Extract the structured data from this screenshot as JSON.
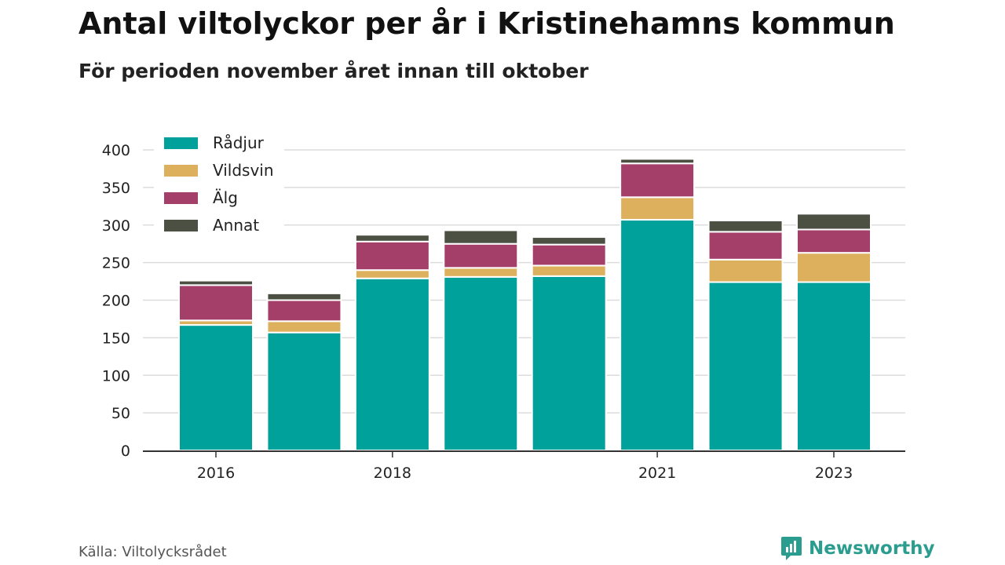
{
  "header": {
    "title": "Antal viltolyckor per år i Kristinehamns kommun",
    "subtitle": "För perioden november året innan till oktober"
  },
  "footer": {
    "source": "Källa: Viltolycksrådet",
    "brand": "Newsworthy",
    "brand_icon": "newsworthy-logo-icon",
    "brand_color": "#2a9d8f"
  },
  "chart_data": {
    "type": "bar",
    "stacked": true,
    "title": "Antal viltolyckor per år i Kristinehamns kommun",
    "subtitle": "För perioden november året innan till oktober",
    "categories": [
      "2016",
      "2017",
      "2018",
      "2019",
      "2020",
      "2021",
      "2022",
      "2023"
    ],
    "x_tick_labels": [
      "2016",
      "",
      "2018",
      "",
      "",
      "2021",
      "",
      "2023"
    ],
    "y_ticks": [
      0,
      50,
      100,
      150,
      200,
      250,
      300,
      350,
      400
    ],
    "ylim": [
      0,
      400
    ],
    "xlabel": "",
    "ylabel": "",
    "grid": true,
    "legend_position": "top-left",
    "series": [
      {
        "name": "Rådjur",
        "color": "#00a19a",
        "values": [
          167,
          157,
          229,
          231,
          232,
          307,
          224,
          224
        ]
      },
      {
        "name": "Vildsvin",
        "color": "#dcb05c",
        "values": [
          6,
          15,
          11,
          12,
          14,
          30,
          30,
          39
        ]
      },
      {
        "name": "Älg",
        "color": "#a43f69",
        "values": [
          47,
          28,
          38,
          32,
          28,
          45,
          37,
          31
        ]
      },
      {
        "name": "Annat",
        "color": "#4c5042",
        "values": [
          6,
          9,
          9,
          18,
          10,
          6,
          15,
          21
        ]
      }
    ]
  }
}
